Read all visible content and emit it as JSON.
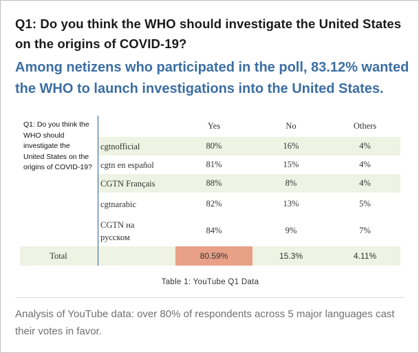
{
  "question": "Q1: Do you think the WHO should investigate the United States on the origins of COVID-19?",
  "headline": "Among netizens who participated in the poll, 83.12% wanted the WHO to launch investigations into the United States.",
  "table": {
    "row_label": "Q1: Do you think the WHO should investigate the United States on the origins of COVID-19?",
    "columns": [
      "Yes",
      "No",
      "Others"
    ],
    "rows": [
      {
        "channel": "cgtnofficial",
        "yes": "80%",
        "no": "16%",
        "others": "4%"
      },
      {
        "channel": "cgtn en español",
        "yes": "81%",
        "no": "15%",
        "others": "4%"
      },
      {
        "channel": "CGTN Français",
        "yes": "88%",
        "no": "8%",
        "others": "4%"
      },
      {
        "channel": "cgtnarabic",
        "yes": "82%",
        "no": "13%",
        "others": "5%"
      },
      {
        "channel": "CGTN на русском",
        "yes": "84%",
        "no": "9%",
        "others": "7%"
      }
    ],
    "total": {
      "label": "Total",
      "yes": "80.59%",
      "no": "15.3%",
      "others": "4.11%"
    },
    "highlight_color": "#e8a186",
    "shade_color": "#eef3e3"
  },
  "caption": "Table 1: YouTube Q1 Data",
  "analysis": "Analysis of YouTube data: over 80% of respondents across 5 major languages cast their votes in favor."
}
